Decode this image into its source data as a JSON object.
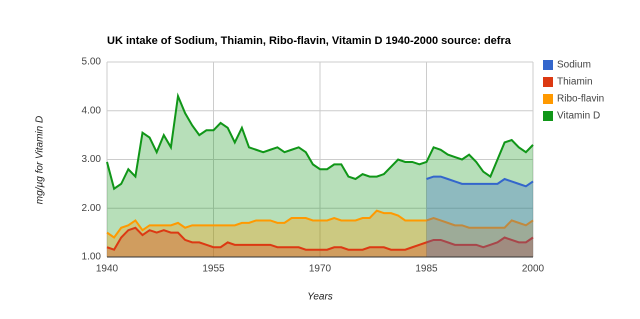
{
  "chart_data": {
    "type": "area",
    "title": "UK intake of Sodium, Thiamin, Ribo-flavin, Vitamin D 1940-2000 source: defra",
    "x_label": "Years",
    "y_label": "mg/µg for Vitamin D",
    "x": [
      1940,
      1941,
      1942,
      1943,
      1944,
      1945,
      1946,
      1947,
      1948,
      1949,
      1950,
      1951,
      1952,
      1953,
      1954,
      1955,
      1956,
      1957,
      1958,
      1959,
      1960,
      1961,
      1962,
      1963,
      1964,
      1965,
      1966,
      1967,
      1968,
      1969,
      1970,
      1971,
      1972,
      1973,
      1974,
      1975,
      1976,
      1977,
      1978,
      1979,
      1980,
      1981,
      1982,
      1983,
      1984,
      1985,
      1986,
      1987,
      1988,
      1989,
      1990,
      1991,
      1992,
      1993,
      1994,
      1995,
      1996,
      1997,
      1998,
      1999,
      2000
    ],
    "series": [
      {
        "name": "Sodium",
        "color": "#3366cc",
        "values": [
          null,
          null,
          null,
          null,
          null,
          null,
          null,
          null,
          null,
          null,
          null,
          null,
          null,
          null,
          null,
          null,
          null,
          null,
          null,
          null,
          null,
          null,
          null,
          null,
          null,
          null,
          null,
          null,
          null,
          null,
          null,
          null,
          null,
          null,
          null,
          null,
          null,
          null,
          null,
          null,
          null,
          null,
          null,
          null,
          null,
          2.6,
          2.65,
          2.65,
          2.6,
          2.55,
          2.5,
          2.5,
          2.5,
          2.5,
          2.5,
          2.5,
          2.6,
          2.55,
          2.5,
          2.45,
          2.55
        ]
      },
      {
        "name": "Thiamin",
        "color": "#dc3912",
        "values": [
          1.2,
          1.15,
          1.4,
          1.55,
          1.6,
          1.45,
          1.55,
          1.5,
          1.55,
          1.5,
          1.5,
          1.35,
          1.3,
          1.3,
          1.25,
          1.2,
          1.2,
          1.3,
          1.25,
          1.25,
          1.25,
          1.25,
          1.25,
          1.25,
          1.2,
          1.2,
          1.2,
          1.2,
          1.15,
          1.15,
          1.15,
          1.15,
          1.2,
          1.2,
          1.15,
          1.15,
          1.15,
          1.2,
          1.2,
          1.2,
          1.15,
          1.15,
          1.15,
          1.2,
          1.25,
          1.3,
          1.35,
          1.35,
          1.3,
          1.25,
          1.25,
          1.25,
          1.25,
          1.2,
          1.25,
          1.3,
          1.4,
          1.35,
          1.3,
          1.3,
          1.4
        ]
      },
      {
        "name": "Ribo-flavin",
        "color": "#ff9900",
        "values": [
          1.5,
          1.4,
          1.6,
          1.65,
          1.75,
          1.55,
          1.65,
          1.65,
          1.65,
          1.65,
          1.7,
          1.6,
          1.65,
          1.65,
          1.65,
          1.65,
          1.65,
          1.65,
          1.65,
          1.7,
          1.7,
          1.75,
          1.75,
          1.75,
          1.7,
          1.7,
          1.8,
          1.8,
          1.8,
          1.75,
          1.75,
          1.75,
          1.8,
          1.75,
          1.75,
          1.75,
          1.8,
          1.8,
          1.95,
          1.9,
          1.9,
          1.85,
          1.75,
          1.75,
          1.75,
          1.75,
          1.8,
          1.75,
          1.7,
          1.65,
          1.65,
          1.6,
          1.6,
          1.6,
          1.6,
          1.6,
          1.6,
          1.75,
          1.7,
          1.65,
          1.75
        ]
      },
      {
        "name": "Vitamin D",
        "color": "#109618",
        "values": [
          2.95,
          2.4,
          2.5,
          2.8,
          2.65,
          3.55,
          3.45,
          3.15,
          3.5,
          3.25,
          4.3,
          3.95,
          3.7,
          3.5,
          3.6,
          3.6,
          3.75,
          3.65,
          3.35,
          3.65,
          3.25,
          3.2,
          3.15,
          3.2,
          3.25,
          3.15,
          3.2,
          3.25,
          3.15,
          2.9,
          2.8,
          2.8,
          2.9,
          2.9,
          2.65,
          2.6,
          2.7,
          2.65,
          2.65,
          2.7,
          2.85,
          3.0,
          2.95,
          2.95,
          2.9,
          2.95,
          3.25,
          3.2,
          3.1,
          3.05,
          3.0,
          3.1,
          2.95,
          2.75,
          2.65,
          3.0,
          3.35,
          3.4,
          3.25,
          3.15,
          3.3
        ]
      }
    ],
    "xlim": [
      1940,
      2000
    ],
    "xticks": [
      1940,
      1955,
      1970,
      1985,
      2000
    ],
    "ylim": [
      1,
      5
    ],
    "yticks": [
      {
        "value": 1,
        "label": "1.00"
      },
      {
        "value": 2,
        "label": "2.00"
      },
      {
        "value": 3,
        "label": "3.00"
      },
      {
        "value": 4,
        "label": "4.00"
      },
      {
        "value": 5,
        "label": "5.00"
      }
    ],
    "grid": true,
    "legend": "right"
  }
}
